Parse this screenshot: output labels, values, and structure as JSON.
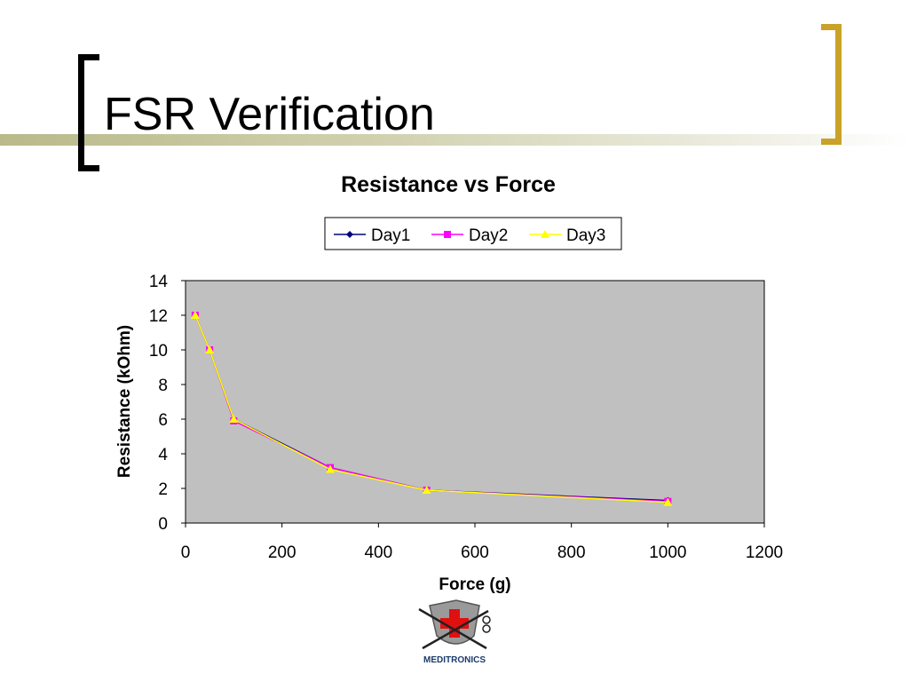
{
  "slide": {
    "title": "FSR Verification"
  },
  "logo": {
    "text": "MEDITRONICS"
  },
  "colors": {
    "plot_bg": "#c0c0c0",
    "accent": "#c9a227"
  },
  "chart_data": {
    "type": "line",
    "title": "Resistance vs Force",
    "xlabel": "Force (g)",
    "ylabel": "Resistance (kOhm)",
    "xlim": [
      0,
      1200
    ],
    "ylim": [
      0,
      14
    ],
    "xticks": [
      0,
      200,
      400,
      600,
      800,
      1000,
      1200
    ],
    "yticks": [
      0,
      2,
      4,
      6,
      8,
      10,
      12,
      14
    ],
    "grid": false,
    "legend_position": "top-center",
    "x": [
      20,
      50,
      100,
      300,
      500,
      1000
    ],
    "series": [
      {
        "name": "Day1",
        "values": [
          12,
          10,
          6,
          3.2,
          1.9,
          1.3
        ],
        "color": "#000080",
        "marker": "diamond"
      },
      {
        "name": "Day2",
        "values": [
          12,
          10,
          5.9,
          3.2,
          1.9,
          1.25
        ],
        "color": "#ff00ff",
        "marker": "square"
      },
      {
        "name": "Day3",
        "values": [
          12,
          10,
          6,
          3.1,
          1.9,
          1.2
        ],
        "color": "#ffff00",
        "marker": "triangle"
      }
    ]
  }
}
